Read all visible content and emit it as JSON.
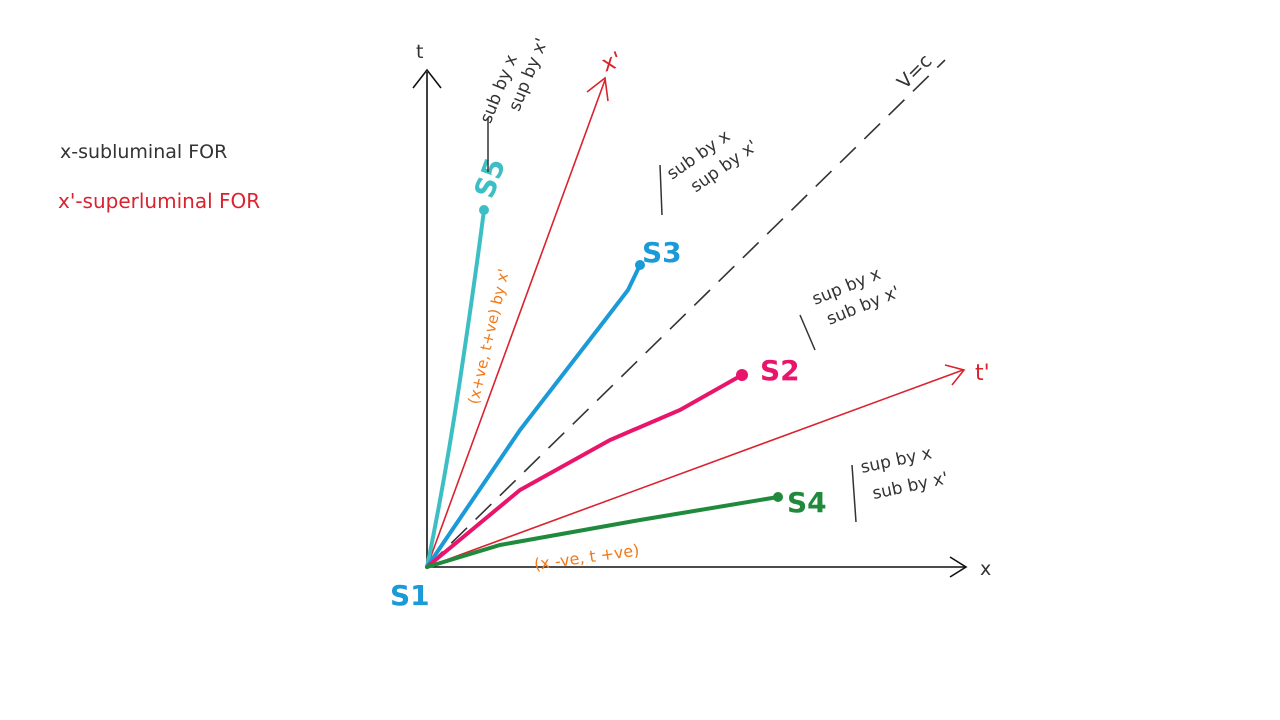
{
  "axes": {
    "t": "t",
    "x": "x",
    "x_prime": "x'",
    "t_prime": "t'",
    "light": "V=c"
  },
  "legend": {
    "subluminal": "x-subluminal FOR",
    "superluminal": "x'-superluminal FOR"
  },
  "events": {
    "s1": "S1",
    "s2": "S2",
    "s3": "S3",
    "s4": "S4",
    "s5": "S5"
  },
  "regions": [
    {
      "line1": "sub by x",
      "line2": "sup by x'"
    },
    {
      "line1": "sub by x",
      "line2": "sup by x'"
    },
    {
      "line1": "sup by x",
      "line2": "sub by x'"
    },
    {
      "line1": "sup by x",
      "line2": "sub by x'"
    }
  ],
  "notes": {
    "upper": "(x+ve, t+ve) by x'",
    "lower": "(x -ve, t +ve)"
  }
}
